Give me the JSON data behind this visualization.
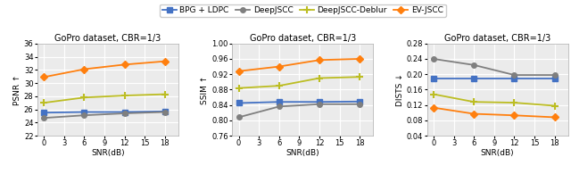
{
  "title": "GoPro dataset, CBR=1/3",
  "snr": [
    0,
    3,
    6,
    9,
    12,
    15,
    18
  ],
  "snr_data": [
    0,
    6,
    12,
    18
  ],
  "legend_labels": [
    "BPG + LDPC",
    "DeepJSCC",
    "DeepJSCC-Deblur",
    "EV-JSCC"
  ],
  "colors": [
    "#4472c4",
    "#7f7f7f",
    "#bcbd22",
    "#ff7f0e"
  ],
  "markers": [
    "s",
    "o",
    "+",
    "D"
  ],
  "psnr": {
    "ylabel": "PSNR ↑",
    "xlabel": "SNR(dB)",
    "ylim": [
      22,
      36
    ],
    "yticks": [
      22,
      24,
      26,
      28,
      30,
      32,
      34,
      36
    ],
    "bpg_ldpc": [
      25.5,
      25.6,
      25.6,
      25.7
    ],
    "deepjscc": [
      24.7,
      25.1,
      25.4,
      25.6
    ],
    "deepjscc_deblur": [
      27.0,
      27.8,
      28.1,
      28.3
    ],
    "ev_jscc": [
      30.9,
      32.1,
      32.8,
      33.3
    ]
  },
  "ssim": {
    "ylabel": "SSIM ↑",
    "xlabel": "SNR(dB)",
    "ylim": [
      0.76,
      1.0
    ],
    "yticks": [
      0.76,
      0.8,
      0.84,
      0.88,
      0.92,
      0.96,
      1.0
    ],
    "bpg_ldpc": [
      0.845,
      0.848,
      0.848,
      0.849
    ],
    "deepjscc": [
      0.808,
      0.836,
      0.842,
      0.842
    ],
    "deepjscc_deblur": [
      0.884,
      0.89,
      0.91,
      0.913
    ],
    "ev_jscc": [
      0.928,
      0.94,
      0.957,
      0.96
    ]
  },
  "dists": {
    "ylabel": "DISTS ↓",
    "xlabel": "SNR(dB)",
    "ylim": [
      0.04,
      0.28
    ],
    "yticks": [
      0.04,
      0.08,
      0.12,
      0.16,
      0.2,
      0.24,
      0.28
    ],
    "bpg_ldpc": [
      0.19,
      0.19,
      0.19,
      0.19
    ],
    "deepjscc": [
      0.24,
      0.224,
      0.198,
      0.198
    ],
    "deepjscc_deblur": [
      0.148,
      0.128,
      0.126,
      0.118
    ],
    "ev_jscc": [
      0.113,
      0.097,
      0.093,
      0.088
    ]
  },
  "background": "#ebebeb",
  "grid_color": "white",
  "marker_size": 4,
  "linewidth": 1.3,
  "title_fontsize": 7.0,
  "label_fontsize": 6.5,
  "tick_fontsize": 6.0,
  "legend_fontsize": 6.5
}
